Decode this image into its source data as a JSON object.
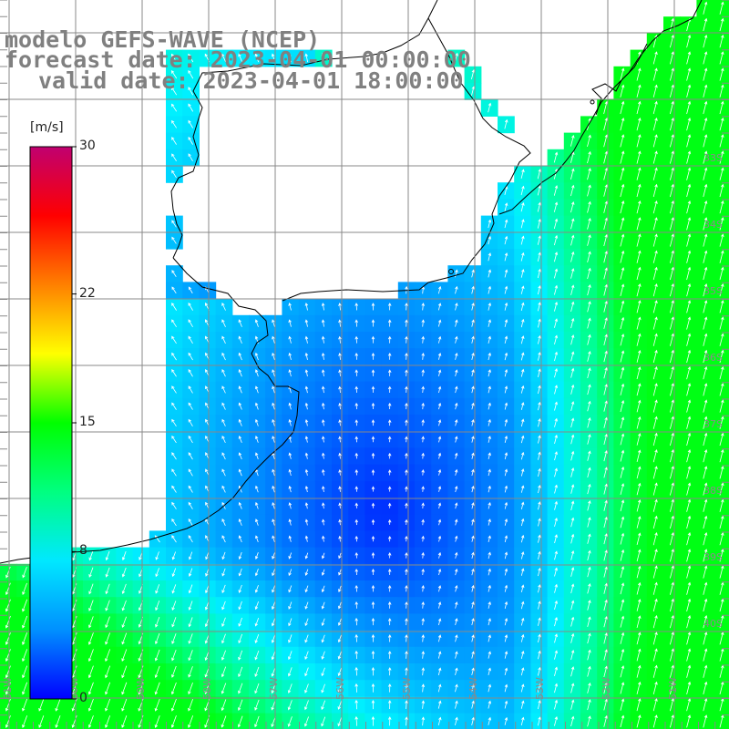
{
  "title": {
    "model": "modelo GEFS-WAVE (NCEP)",
    "forecast": "forecast date: 2023-04-01 00:00:00",
    "valid": "valid date: 2023-04-01 18:00:00"
  },
  "colorbar": {
    "unit": "[m/s]",
    "min": 0,
    "max": 30,
    "ticks": [
      {
        "value": 30,
        "label": "30"
      },
      {
        "value": 22,
        "label": "22"
      },
      {
        "value": 15,
        "label": "15"
      },
      {
        "value": 8,
        "label": "8"
      },
      {
        "value": 0,
        "label": "0"
      }
    ],
    "colors": [
      "#0000ff",
      "#0090ff",
      "#00e8ff",
      "#00ff80",
      "#00ff00",
      "#ffff00",
      "#ff8000",
      "#ff0000",
      "#c00070"
    ]
  },
  "graticule": {
    "lon_labels": [
      "61W",
      "60W",
      "59W",
      "58W",
      "57W",
      "56W",
      "55W",
      "54W",
      "53W",
      "52W",
      "51W"
    ],
    "lat_labels": [
      "33S",
      "34S",
      "35S",
      "36S",
      "37S",
      "38S",
      "39S",
      "40S"
    ]
  },
  "colors": {
    "land": "#ffffff",
    "coast": "#000000",
    "grid": "#888888",
    "title": "#808080",
    "arrow": "#ffffff"
  }
}
